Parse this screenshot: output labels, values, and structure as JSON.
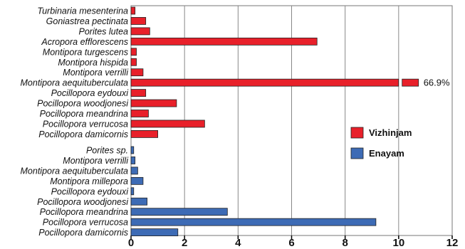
{
  "chart_data": {
    "type": "bar",
    "orientation": "horizontal",
    "xlim": [
      0,
      12
    ],
    "x_ticks": [
      "0",
      "2",
      "4",
      "6",
      "8",
      "10",
      "12"
    ],
    "grid": "vertical",
    "legend_position": "right",
    "axis_break": 10.05,
    "series": [
      {
        "name": "Vizhinjam",
        "color": "#e8202a",
        "categories": [
          "Turbinaria mesenterina",
          "Goniastrea pectinata",
          "Porites lutea",
          "Acropora efflorescens",
          "Montipora turgescens",
          "Montipora hispida",
          "Montipora verrilli",
          "Montipora aequituberculata",
          "Pocillopora eydouxi",
          "Pocillopora woodjonesi",
          "Pocillopora meandrina",
          "Pocillopora verrucosa",
          "Pocillopora damicornis"
        ],
        "values": [
          0.15,
          0.55,
          0.7,
          6.95,
          0.2,
          0.2,
          0.45,
          66.9,
          0.55,
          1.7,
          0.65,
          2.75,
          1.0
        ],
        "bar_labels": [
          "",
          "",
          "",
          "",
          "",
          "",
          "",
          "66.9%",
          "",
          "",
          "",
          "",
          ""
        ]
      },
      {
        "name": "Enayam",
        "color": "#3d6bb5",
        "categories": [
          "Porites sp.",
          "Montipora verrilli",
          "Montipora aequituberculata",
          "Montipora millepora",
          "Pocillopora eydouxi",
          "Pocillopora woodjonesi",
          "Pocillopora meandrina",
          "Pocillopora verrucosa",
          "Pocillopora damicornis"
        ],
        "values": [
          0.1,
          0.15,
          0.25,
          0.45,
          0.1,
          0.6,
          3.6,
          9.15,
          1.75
        ],
        "bar_labels": [
          "",
          "",
          "",
          "",
          "",
          "",
          "",
          "",
          ""
        ]
      }
    ]
  }
}
